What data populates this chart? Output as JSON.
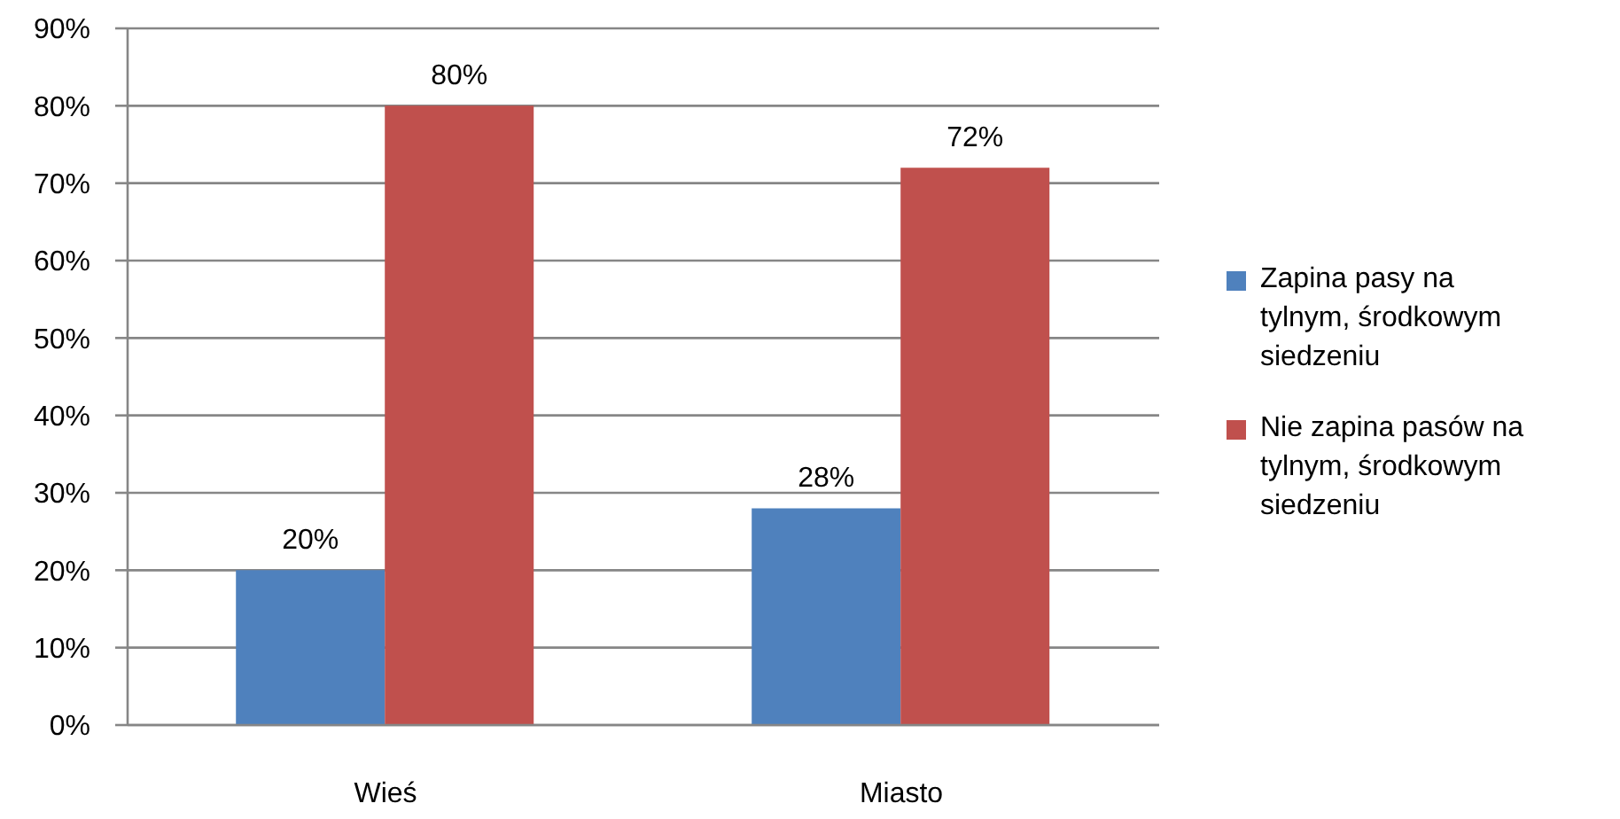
{
  "chart_data": {
    "type": "bar",
    "categories": [
      "Wieś",
      "Miasto"
    ],
    "series": [
      {
        "name": "Zapina pasy na tylnym, środkowym siedzeniu",
        "color": "#4f81bd",
        "values": [
          20,
          28
        ],
        "value_labels": [
          "20%",
          "28%"
        ]
      },
      {
        "name": "Nie zapina pasów na tylnym, środkowym siedzeniu",
        "color": "#c0504d",
        "values": [
          80,
          72
        ],
        "value_labels": [
          "80%",
          "72%"
        ]
      }
    ],
    "ylim": [
      0,
      90
    ],
    "yticks": [
      {
        "value": 0,
        "label": "0%"
      },
      {
        "value": 10,
        "label": "10%"
      },
      {
        "value": 20,
        "label": "20%"
      },
      {
        "value": 30,
        "label": "30%"
      },
      {
        "value": 40,
        "label": "40%"
      },
      {
        "value": 50,
        "label": "50%"
      },
      {
        "value": 60,
        "label": "60%"
      },
      {
        "value": 70,
        "label": "70%"
      },
      {
        "value": 80,
        "label": "80%"
      },
      {
        "value": 90,
        "label": "90%"
      }
    ],
    "grid": "y",
    "legend": "right"
  }
}
